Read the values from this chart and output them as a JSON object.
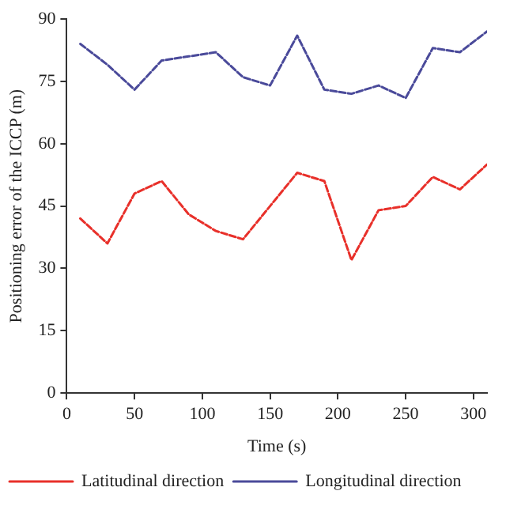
{
  "chart_data": {
    "type": "line",
    "xlabel": "Time (s)",
    "ylabel": "Positioning error of the ICCP (m)",
    "x": [
      10,
      30,
      50,
      70,
      90,
      110,
      130,
      150,
      170,
      190,
      210,
      230,
      250,
      270,
      290,
      310
    ],
    "series": [
      {
        "name": "Latitudinal direction",
        "color": "#e8302a",
        "values": [
          42,
          36,
          48,
          51,
          43,
          39,
          37,
          45,
          53,
          51,
          32,
          44,
          45,
          52,
          49,
          55
        ]
      },
      {
        "name": "Longitudinal direction",
        "color": "#4a4a9a",
        "values": [
          84,
          79,
          73,
          80,
          81,
          82,
          76,
          74,
          86,
          73,
          72,
          74,
          71,
          83,
          82,
          87
        ]
      }
    ],
    "xlim": [
      0,
      310
    ],
    "xticks": [
      0,
      50,
      100,
      150,
      200,
      250,
      300
    ],
    "ylim": [
      0,
      90
    ],
    "yticks": [
      0,
      15,
      30,
      45,
      60,
      75,
      90
    ],
    "grid": false,
    "legend": "bottom",
    "marker": "none",
    "line_style": "dashed"
  }
}
